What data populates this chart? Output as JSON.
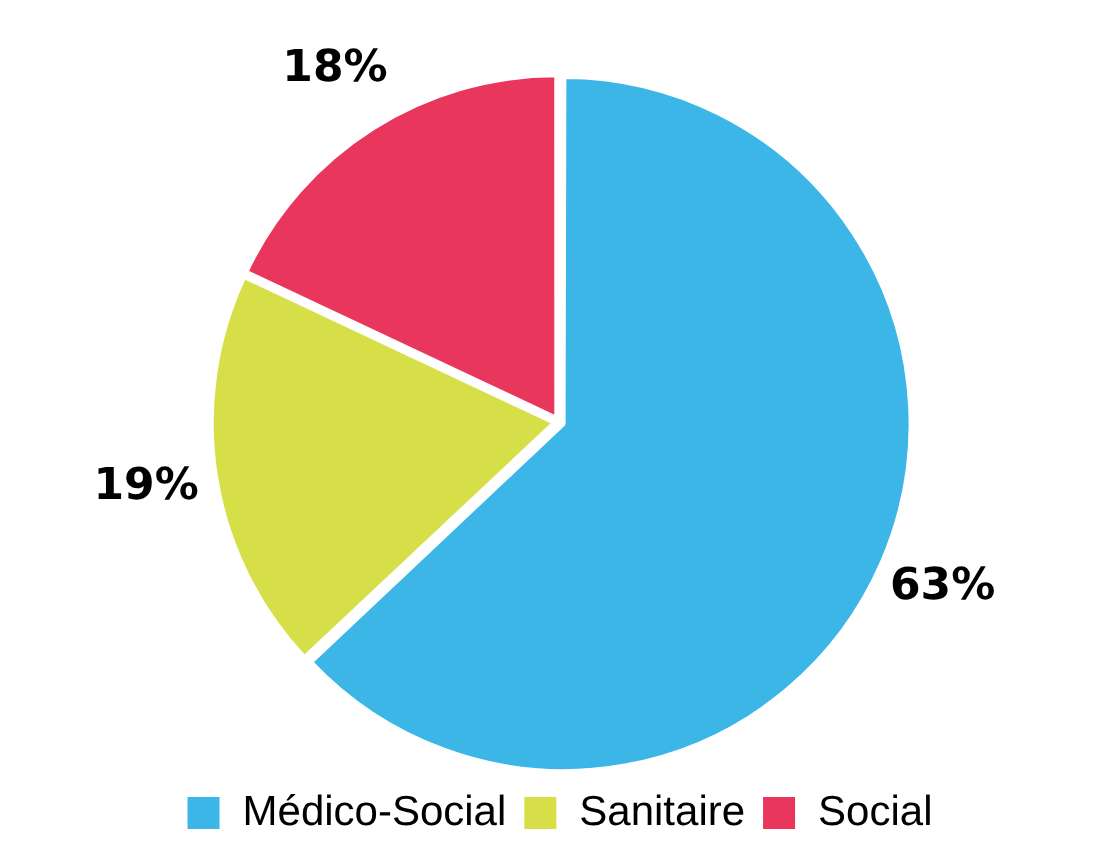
{
  "chart_data": {
    "type": "pie",
    "categories": [
      "Médico-Social",
      "Sanitaire",
      "Social"
    ],
    "values": [
      63,
      19,
      18
    ],
    "colors": [
      "#3cb6e6",
      "#d6df48",
      "#e8365c"
    ],
    "value_labels": [
      "63%",
      "19%",
      "18%"
    ],
    "legend": "bottom"
  }
}
